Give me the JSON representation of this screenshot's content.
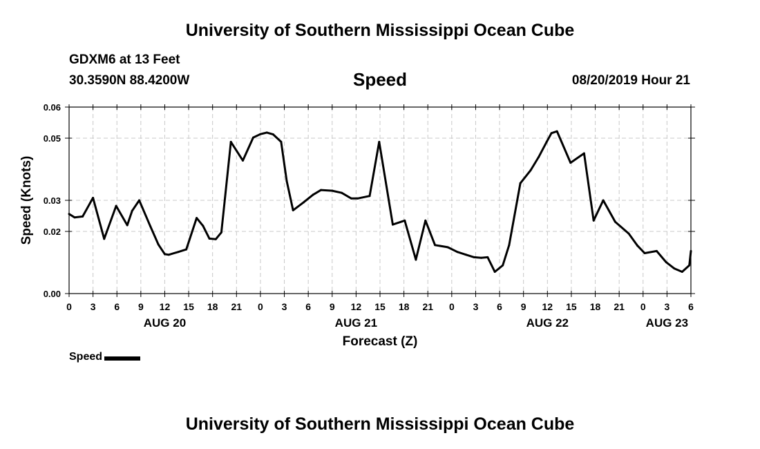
{
  "header": {
    "title": "University of Southern Mississippi Ocean Cube",
    "station": "GDXM6 at 13 Feet",
    "coordinates": "30.3590N 88.4200W",
    "subtitle": "Speed",
    "datetime": "08/20/2019 Hour 21"
  },
  "footer": {
    "title": "University of Southern Mississippi Ocean Cube"
  },
  "legend": {
    "label": "Speed",
    "color": "#000000"
  },
  "chart_data": {
    "type": "line",
    "title": "Speed",
    "xlabel": "Forecast (Z)",
    "ylabel": "Speed (Knots)",
    "xlim": [
      0,
      78
    ],
    "ylim": [
      0,
      0.06
    ],
    "grid": true,
    "yticks": [
      {
        "value": 0.0,
        "label": "0.00"
      },
      {
        "value": 0.02,
        "label": "0.02"
      },
      {
        "value": 0.03,
        "label": "0.03"
      },
      {
        "value": 0.05,
        "label": "0.05"
      },
      {
        "value": 0.06,
        "label": "0.06"
      }
    ],
    "xticks": [
      {
        "value": 0,
        "label": "0"
      },
      {
        "value": 3,
        "label": "3"
      },
      {
        "value": 6,
        "label": "6"
      },
      {
        "value": 9,
        "label": "9"
      },
      {
        "value": 12,
        "label": "12"
      },
      {
        "value": 15,
        "label": "15"
      },
      {
        "value": 18,
        "label": "18"
      },
      {
        "value": 21,
        "label": "21"
      },
      {
        "value": 24,
        "label": "0"
      },
      {
        "value": 27,
        "label": "3"
      },
      {
        "value": 30,
        "label": "6"
      },
      {
        "value": 33,
        "label": "9"
      },
      {
        "value": 36,
        "label": "12"
      },
      {
        "value": 39,
        "label": "15"
      },
      {
        "value": 42,
        "label": "18"
      },
      {
        "value": 45,
        "label": "21"
      },
      {
        "value": 48,
        "label": "0"
      },
      {
        "value": 51,
        "label": "3"
      },
      {
        "value": 54,
        "label": "6"
      },
      {
        "value": 57,
        "label": "9"
      },
      {
        "value": 60,
        "label": "12"
      },
      {
        "value": 63,
        "label": "15"
      },
      {
        "value": 66,
        "label": "18"
      },
      {
        "value": 69,
        "label": "21"
      },
      {
        "value": 72,
        "label": "0"
      },
      {
        "value": 75,
        "label": "3"
      },
      {
        "value": 78,
        "label": "6"
      }
    ],
    "day_labels": [
      {
        "value": 12,
        "label": "AUG 20"
      },
      {
        "value": 36,
        "label": "AUG 21"
      },
      {
        "value": 60,
        "label": "AUG 22"
      },
      {
        "value": 75,
        "label": "AUG 23"
      }
    ],
    "series": [
      {
        "name": "Speed",
        "x": [
          0,
          0.7,
          1.7,
          3,
          4.4,
          5.9,
          7.3,
          7.9,
          8.8,
          10.2,
          11.2,
          12,
          12.5,
          13.7,
          14.7,
          16,
          16.8,
          17.6,
          18.4,
          19.1,
          20.3,
          21.8,
          23.1,
          24,
          24.8,
          25.6,
          26.6,
          27.3,
          28.1,
          29.4,
          30.6,
          31.6,
          33,
          34.2,
          35.4,
          36.2,
          37.7,
          38.9,
          40.6,
          42.1,
          43.5,
          44.7,
          45.9,
          47.5,
          48.7,
          49.8,
          50.8,
          51.7,
          52.5,
          53.4,
          54.4,
          55.2,
          56.6,
          57.9,
          58.9,
          59.9,
          60.5,
          61.2,
          62.9,
          64.6,
          65.8,
          67,
          68.5,
          70.2,
          71.3,
          72.2,
          73.7,
          74.9,
          75.9,
          76.9,
          77.8,
          78
        ],
        "values": [
          0.0256,
          0.0245,
          0.0248,
          0.0308,
          0.0176,
          0.0282,
          0.022,
          0.0266,
          0.03,
          0.0216,
          0.0158,
          0.0127,
          0.0125,
          0.0134,
          0.0142,
          0.0243,
          0.0218,
          0.0177,
          0.0175,
          0.0197,
          0.0488,
          0.0428,
          0.0502,
          0.0513,
          0.0518,
          0.0512,
          0.0488,
          0.0362,
          0.0268,
          0.0293,
          0.0318,
          0.0333,
          0.0331,
          0.0324,
          0.0306,
          0.0306,
          0.0314,
          0.0488,
          0.0222,
          0.0235,
          0.0109,
          0.0235,
          0.0156,
          0.0149,
          0.0134,
          0.0125,
          0.0117,
          0.0115,
          0.0117,
          0.007,
          0.0091,
          0.0156,
          0.0355,
          0.0397,
          0.0439,
          0.0488,
          0.0516,
          0.0522,
          0.0421,
          0.0451,
          0.0235,
          0.03,
          0.0231,
          0.0193,
          0.0154,
          0.013,
          0.0137,
          0.0101,
          0.0081,
          0.007,
          0.0091,
          0.0137
        ]
      }
    ]
  }
}
